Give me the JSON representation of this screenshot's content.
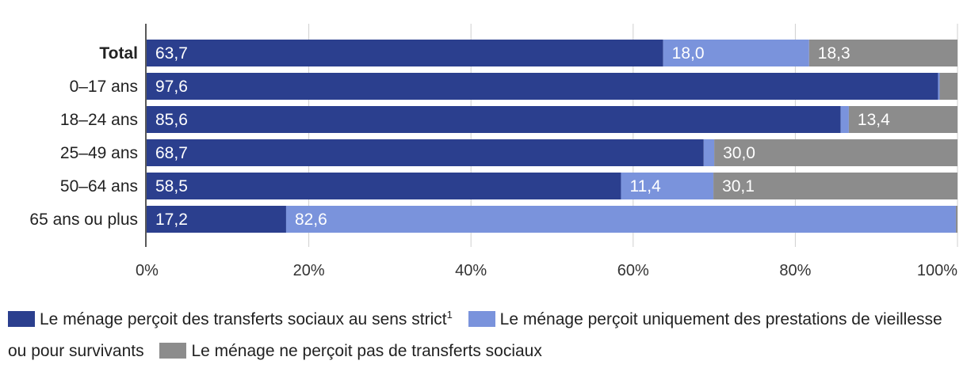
{
  "chart_data": {
    "type": "bar",
    "orientation": "horizontal",
    "stacked": true,
    "categories": [
      "Total",
      "0–17 ans",
      "18–24 ans",
      "25–49 ans",
      "50–64 ans",
      "65 ans ou plus"
    ],
    "series": [
      {
        "name": "Le ménage perçoit des transferts sociaux au sens strict",
        "color": "#2b3f8e",
        "values": [
          63.7,
          97.6,
          85.6,
          68.7,
          58.5,
          17.2
        ],
        "labels": [
          "63,7",
          "97,6",
          "85,6",
          "68,7",
          "58,5",
          "17,2"
        ]
      },
      {
        "name": "Le ménage perçoit uniquement des prestations de vieillesse ou pour survivants",
        "color": "#7a93dc",
        "values": [
          18.0,
          0.2,
          1.0,
          1.3,
          11.4,
          82.6
        ],
        "labels": [
          "18,0",
          "",
          "",
          "",
          "11,4",
          "82,6"
        ]
      },
      {
        "name": "Le ménage ne perçoit pas de transferts sociaux",
        "color": "#8c8c8c",
        "values": [
          18.3,
          2.2,
          13.4,
          30.0,
          30.1,
          0.2
        ],
        "labels": [
          "18,3",
          "",
          "13,4",
          "30,0",
          "30,1",
          ""
        ]
      }
    ],
    "xlim": [
      0,
      100
    ],
    "x_ticks": [
      "0%",
      "20%",
      "40%",
      "60%",
      "80%",
      "100%"
    ],
    "grid": true,
    "legend_position": "bottom",
    "legend": {
      "item1_text": "Le ménage perçoit des transferts sociaux au sens strict",
      "item1_footnote": "1",
      "item2_text": "Le ménage perçoit uniquement des prestations de vieillesse ou pour survivants",
      "item3_text": "Le ménage ne perçoit pas de transferts sociaux"
    }
  }
}
